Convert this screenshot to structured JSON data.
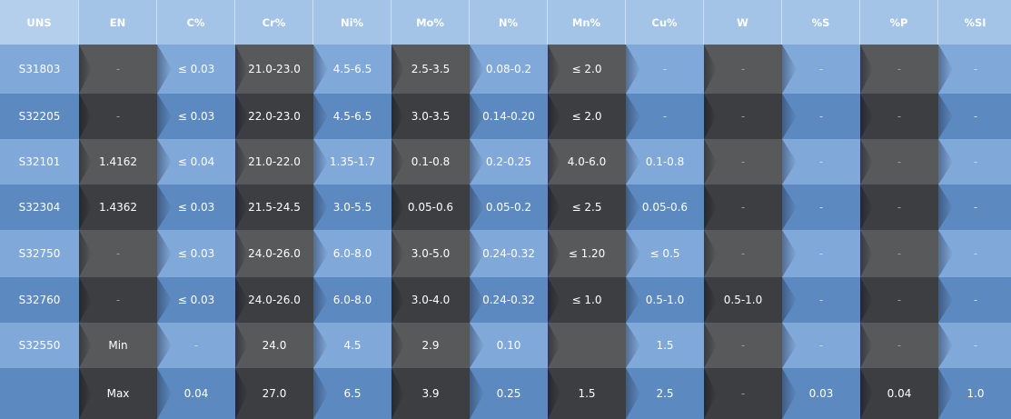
{
  "headers": [
    "UNS",
    "EN",
    "C%",
    "Cr%",
    "Ni%",
    "Mo%",
    "N%",
    "Mn%",
    "Cu%",
    "W",
    "%S",
    "%P",
    "%SI"
  ],
  "rows": [
    [
      "S31803",
      "-",
      "≤ 0.03",
      "21.0-23.0",
      "4.5-6.5",
      "2.5-3.5",
      "0.08-0.2",
      "≤ 2.0",
      "-",
      "-",
      "-",
      "-",
      "-"
    ],
    [
      "S32205",
      "-",
      "≤ 0.03",
      "22.0-23.0",
      "4.5-6.5",
      "3.0-3.5",
      "0.14-0.20",
      "≤ 2.0",
      "-",
      "-",
      "-",
      "-",
      "-"
    ],
    [
      "S32101",
      "1.4162",
      "≤ 0.04",
      "21.0-22.0",
      "1.35-1.7",
      "0.1-0.8",
      "0.2-0.25",
      "4.0-6.0",
      "0.1-0.8",
      "-",
      "-",
      "-",
      "-"
    ],
    [
      "S32304",
      "1.4362",
      "≤ 0.03",
      "21.5-24.5",
      "3.0-5.5",
      "0.05-0.6",
      "0.05-0.2",
      "≤ 2.5",
      "0.05-0.6",
      "-",
      "-",
      "-",
      "-"
    ],
    [
      "S32750",
      "-",
      "≤ 0.03",
      "24.0-26.0",
      "6.0-8.0",
      "3.0-5.0",
      "0.24-0.32",
      "≤ 1.20",
      "≤ 0.5",
      "-",
      "-",
      "-",
      "-"
    ],
    [
      "S32760",
      "-",
      "≤ 0.03",
      "24.0-26.0",
      "6.0-8.0",
      "3.0-4.0",
      "0.24-0.32",
      "≤ 1.0",
      "0.5-1.0",
      "0.5-1.0",
      "-",
      "-",
      "-"
    ],
    [
      "S32550",
      "Min",
      "-",
      "24.0",
      "4.5",
      "2.9",
      "0.10",
      "",
      "1.5",
      "-",
      "-",
      "-",
      "-"
    ],
    [
      "",
      "Max",
      "0.04",
      "27.0",
      "6.5",
      "3.9",
      "0.25",
      "1.5",
      "2.5",
      "-",
      "0.03",
      "0.04",
      "1.0"
    ]
  ],
  "colors": {
    "header_bg": "#a3c4e6",
    "blue_light": "#80a8d9",
    "blue_dark": "#5c89bf",
    "gray_light": "#58595b",
    "gray_dark": "#3c3e41",
    "text": "#ffffff"
  }
}
